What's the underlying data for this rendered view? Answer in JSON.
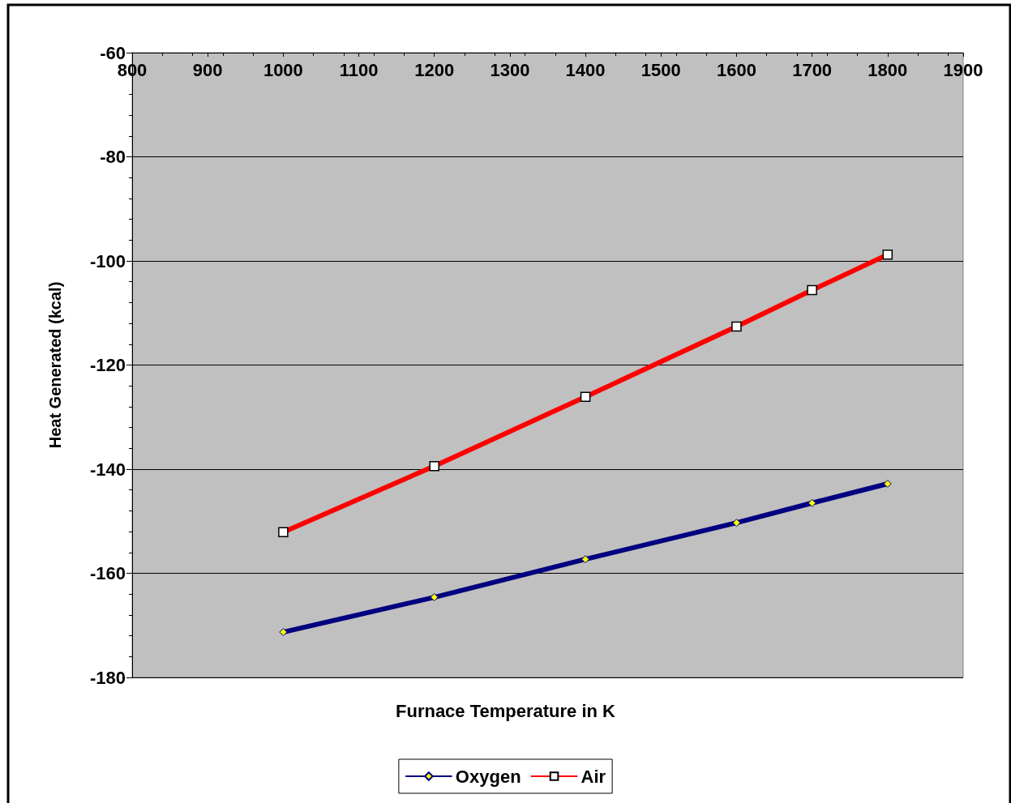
{
  "chart_data": {
    "type": "line",
    "xlabel": "Furnace Temperature in K",
    "ylabel": "Heat Generated (kcal)",
    "x": [
      1000,
      1200,
      1400,
      1600,
      1700,
      1800
    ],
    "series": [
      {
        "name": "Oxygen",
        "color": "#000080",
        "marker": "diamond",
        "values": [
          -171.3,
          -164.6,
          -157.3,
          -150.3,
          -146.5,
          -142.8
        ]
      },
      {
        "name": "Air",
        "color": "#ff0000",
        "marker": "square",
        "values": [
          -152.1,
          -139.4,
          -126.1,
          -112.6,
          -105.6,
          -98.8
        ]
      }
    ],
    "xlim": [
      800,
      1900
    ],
    "xticks": [
      800,
      900,
      1000,
      1100,
      1200,
      1300,
      1400,
      1500,
      1600,
      1700,
      1800,
      1900
    ],
    "ylim": [
      -180,
      -60
    ],
    "yticks": [
      -180,
      -160,
      -140,
      -120,
      -100,
      -80,
      -60
    ],
    "grid": "y",
    "legend": "bottom",
    "line_style": "solid"
  }
}
